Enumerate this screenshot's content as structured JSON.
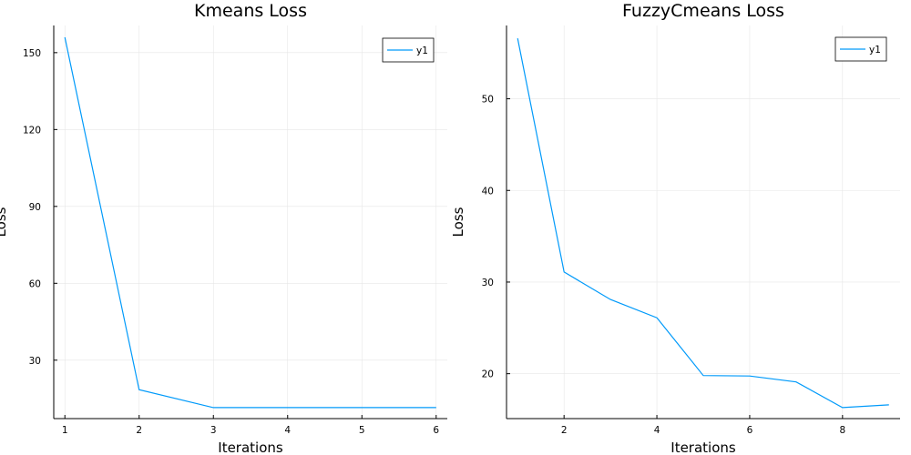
{
  "chart_data": [
    {
      "type": "line",
      "title": "Kmeans Loss",
      "xlabel": "Iterations",
      "ylabel": "Loss",
      "x": [
        1,
        2,
        3,
        4,
        5,
        6
      ],
      "series": [
        {
          "name": "y1",
          "values": [
            156,
            18.5,
            11.5,
            11.5,
            11.5,
            11.5
          ]
        }
      ],
      "xlim": [
        0.85,
        6.15
      ],
      "ylim": [
        7.2,
        160.6
      ],
      "xticks": [
        1,
        2,
        3,
        4,
        5,
        6
      ],
      "yticks": [
        30,
        60,
        90,
        120,
        150
      ],
      "grid": true,
      "legend": "top-right",
      "color": "#009AFA"
    },
    {
      "type": "line",
      "title": "FuzzyCmeans Loss",
      "xlabel": "Iterations",
      "ylabel": "Loss",
      "x": [
        1,
        2,
        3,
        4,
        5,
        6,
        7,
        8,
        9
      ],
      "series": [
        {
          "name": "y1",
          "values": [
            56.6,
            31.1,
            28.1,
            26.1,
            19.8,
            19.75,
            19.1,
            16.3,
            16.6
          ]
        }
      ],
      "xlim": [
        0.76,
        9.24
      ],
      "ylim": [
        15.1,
        58.0
      ],
      "xticks": [
        2,
        4,
        6,
        8
      ],
      "yticks": [
        20,
        30,
        40,
        50
      ],
      "grid": true,
      "legend": "top-right",
      "color": "#009AFA"
    }
  ]
}
